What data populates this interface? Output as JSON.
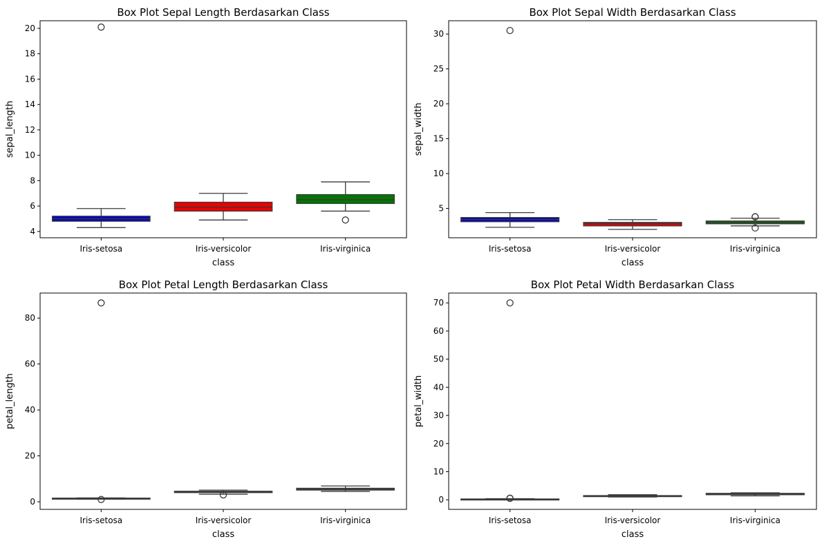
{
  "chart_data": [
    {
      "type": "box",
      "title": "Box Plot Sepal Length Berdasarkan Class",
      "xlabel": "class",
      "ylabel": "sepal_length",
      "categories": [
        "Iris-setosa",
        "Iris-versicolor",
        "Iris-virginica"
      ],
      "colors": [
        "#0000cc",
        "#ee0000",
        "#007700"
      ],
      "ylim": [
        3.5,
        20.6
      ],
      "yticks": [
        4,
        6,
        8,
        10,
        12,
        14,
        16,
        18,
        20
      ],
      "boxes": [
        {
          "whislo": 4.3,
          "q1": 4.8,
          "med": 5.0,
          "q3": 5.2,
          "whishi": 5.8,
          "fliers": [
            20.1
          ]
        },
        {
          "whislo": 4.9,
          "q1": 5.6,
          "med": 5.9,
          "q3": 6.3,
          "whishi": 7.0,
          "fliers": []
        },
        {
          "whislo": 5.6,
          "q1": 6.2,
          "med": 6.5,
          "q3": 6.9,
          "whishi": 7.9,
          "fliers": [
            4.9
          ]
        }
      ]
    },
    {
      "type": "box",
      "title": "Box Plot Sepal Width Berdasarkan Class",
      "xlabel": "class",
      "ylabel": "sepal_width",
      "categories": [
        "Iris-setosa",
        "Iris-versicolor",
        "Iris-virginica"
      ],
      "colors": [
        "#0000cc",
        "#ee0000",
        "#007700"
      ],
      "ylim": [
        0.8,
        31.9
      ],
      "yticks": [
        5,
        10,
        15,
        20,
        25,
        30
      ],
      "boxes": [
        {
          "whislo": 2.3,
          "q1": 3.1,
          "med": 3.4,
          "q3": 3.7,
          "whishi": 4.4,
          "fliers": [
            30.5
          ]
        },
        {
          "whislo": 2.0,
          "q1": 2.5,
          "med": 2.8,
          "q3": 3.0,
          "whishi": 3.4,
          "fliers": []
        },
        {
          "whislo": 2.5,
          "q1": 2.8,
          "med": 3.0,
          "q3": 3.2,
          "whishi": 3.6,
          "fliers": [
            3.8,
            3.8,
            2.2
          ]
        }
      ]
    },
    {
      "type": "box",
      "title": "Box Plot Petal Length Berdasarkan Class",
      "xlabel": "class",
      "ylabel": "petal_length",
      "categories": [
        "Iris-setosa",
        "Iris-versicolor",
        "Iris-virginica"
      ],
      "colors": [
        "#0000cc",
        "#ee0000",
        "#007700"
      ],
      "ylim": [
        -3.3,
        90.9
      ],
      "yticks": [
        0,
        20,
        40,
        60,
        80
      ],
      "boxes": [
        {
          "whislo": 1.2,
          "q1": 1.4,
          "med": 1.5,
          "q3": 1.6,
          "whishi": 1.7,
          "fliers": [
            86.6,
            1.0
          ]
        },
        {
          "whislo": 3.3,
          "q1": 4.0,
          "med": 4.35,
          "q3": 4.6,
          "whishi": 5.1,
          "fliers": [
            3.0
          ]
        },
        {
          "whislo": 4.5,
          "q1": 5.1,
          "med": 5.55,
          "q3": 5.9,
          "whishi": 6.9,
          "fliers": []
        }
      ]
    },
    {
      "type": "box",
      "title": "Box Plot Petal Width Berdasarkan Class",
      "xlabel": "class",
      "ylabel": "petal_width",
      "categories": [
        "Iris-setosa",
        "Iris-versicolor",
        "Iris-virginica"
      ],
      "colors": [
        "#0000cc",
        "#ee0000",
        "#007700"
      ],
      "ylim": [
        -3.4,
        73.5
      ],
      "yticks": [
        0,
        10,
        20,
        30,
        40,
        50,
        60,
        70
      ],
      "boxes": [
        {
          "whislo": 0.1,
          "q1": 0.2,
          "med": 0.2,
          "q3": 0.3,
          "whishi": 0.4,
          "fliers": [
            70.0,
            0.5,
            0.6
          ]
        },
        {
          "whislo": 1.0,
          "q1": 1.2,
          "med": 1.3,
          "q3": 1.5,
          "whishi": 1.8,
          "fliers": []
        },
        {
          "whislo": 1.4,
          "q1": 1.8,
          "med": 2.0,
          "q3": 2.3,
          "whishi": 2.5,
          "fliers": []
        }
      ]
    }
  ]
}
